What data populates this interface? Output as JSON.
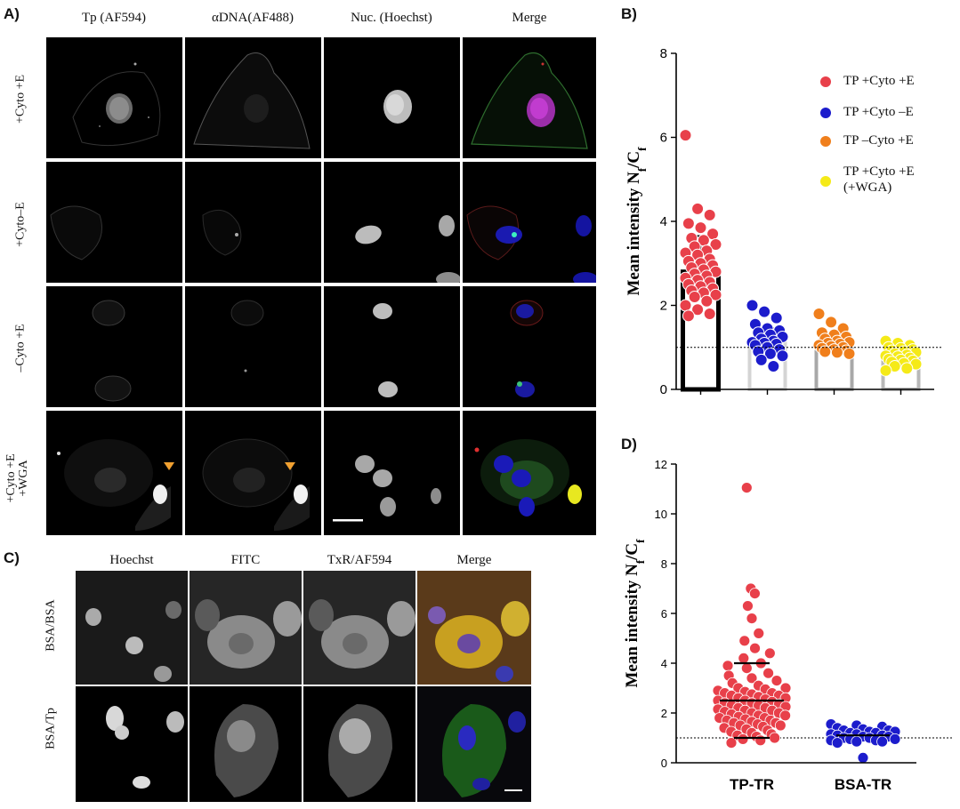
{
  "panel_a": {
    "label": "A)",
    "columns": [
      "Tp (AF594)",
      "αDNA(AF488)",
      "Nuc. (Hoechst)",
      "Merge"
    ],
    "rows": [
      "+Cyto +E",
      "+Cyto–E",
      "–Cyto +E",
      "+Cyto +E\n+WGA"
    ]
  },
  "panel_b": {
    "label": "B)",
    "legend": [
      "TP +Cyto +E",
      "TP +Cyto –E",
      "TP –Cyto +E",
      "TP +Cyto +E",
      "(+WGA)"
    ]
  },
  "panel_c": {
    "label": "C)",
    "columns": [
      "Hoechst",
      "FITC",
      "TxR/AF594",
      "Merge"
    ],
    "rows": [
      "BSA/BSA",
      "BSA/Tp"
    ]
  },
  "panel_d": {
    "label": "D)"
  },
  "chart_data": [
    {
      "type": "bar",
      "panel": "B",
      "ylabel": "Mean intensity Nf/Cf",
      "ylim": [
        0,
        8
      ],
      "yticks": [
        "0",
        "2",
        "4",
        "6",
        "8"
      ],
      "reference_line": 1,
      "colors": {
        "s1": "#e8404a",
        "s2": "#1c1ccc",
        "s3": "#f07f1c",
        "s4": "#f5ea18"
      },
      "series": [
        {
          "name": "TP +Cyto +E",
          "mean": 2.8,
          "sd": 0.85,
          "values": [
            6.05,
            4.3,
            4.15,
            3.95,
            3.85,
            3.7,
            3.6,
            3.55,
            3.45,
            3.4,
            3.3,
            3.25,
            3.2,
            3.1,
            3.05,
            3.0,
            2.95,
            2.9,
            2.85,
            2.8,
            2.75,
            2.7,
            2.65,
            2.6,
            2.55,
            2.5,
            2.45,
            2.4,
            2.35,
            2.3,
            2.25,
            2.2,
            2.1,
            2.0,
            1.9,
            1.8,
            1.75
          ]
        },
        {
          "name": "TP +Cyto –E",
          "mean": 1.15,
          "sd": 0.3,
          "values": [
            2.0,
            1.85,
            1.7,
            1.55,
            1.45,
            1.4,
            1.35,
            1.3,
            1.25,
            1.2,
            1.15,
            1.12,
            1.1,
            1.08,
            1.05,
            1.0,
            0.95,
            0.9,
            0.85,
            0.8,
            0.7,
            0.55
          ]
        },
        {
          "name": "TP –Cyto +E",
          "mean": 1.1,
          "sd": 0.22,
          "values": [
            1.8,
            1.6,
            1.45,
            1.35,
            1.3,
            1.25,
            1.2,
            1.15,
            1.12,
            1.1,
            1.08,
            1.05,
            1.02,
            1.0,
            0.98,
            0.95,
            0.92,
            0.9,
            0.88,
            0.85
          ]
        },
        {
          "name": "TP +Cyto +E (+WGA)",
          "mean": 0.8,
          "sd": 0.15,
          "values": [
            1.15,
            1.1,
            1.05,
            1.0,
            0.98,
            0.95,
            0.92,
            0.9,
            0.88,
            0.85,
            0.82,
            0.8,
            0.78,
            0.75,
            0.72,
            0.7,
            0.68,
            0.65,
            0.62,
            0.6,
            0.55,
            0.5,
            0.45
          ]
        }
      ]
    },
    {
      "type": "scatter",
      "panel": "D",
      "ylabel": "Mean intensity Nf/Cf",
      "ylim": [
        0,
        12
      ],
      "yticks": [
        "0",
        "2",
        "4",
        "6",
        "8",
        "10",
        "12"
      ],
      "categories": [
        "TP-TR",
        "BSA-TR"
      ],
      "reference_line": 1,
      "colors": {
        "s1": "#e8404a",
        "s2": "#1c1ccc"
      },
      "series": [
        {
          "name": "TP-TR",
          "mean": 2.5,
          "sd": 1.5,
          "values": [
            11.05,
            7.0,
            6.8,
            6.3,
            5.8,
            5.2,
            4.9,
            4.6,
            4.4,
            4.2,
            4.0,
            3.9,
            3.8,
            3.6,
            3.5,
            3.4,
            3.3,
            3.2,
            3.1,
            3.0,
            3.0,
            2.95,
            2.9,
            2.85,
            2.8,
            2.8,
            2.75,
            2.7,
            2.7,
            2.65,
            2.6,
            2.6,
            2.55,
            2.5,
            2.5,
            2.45,
            2.4,
            2.4,
            2.35,
            2.3,
            2.3,
            2.25,
            2.2,
            2.2,
            2.15,
            2.1,
            2.1,
            2.05,
            2.0,
            2.0,
            1.95,
            1.9,
            1.9,
            1.85,
            1.8,
            1.8,
            1.75,
            1.7,
            1.7,
            1.65,
            1.6,
            1.6,
            1.55,
            1.5,
            1.5,
            1.45,
            1.4,
            1.35,
            1.3,
            1.25,
            1.2,
            1.15,
            1.1,
            1.05,
            1.0,
            0.95,
            0.9,
            0.8
          ]
        },
        {
          "name": "BSA-TR",
          "mean": 1.1,
          "sd": 0.2,
          "values": [
            1.55,
            1.5,
            1.45,
            1.4,
            1.35,
            1.3,
            1.3,
            1.25,
            1.25,
            1.2,
            1.2,
            1.15,
            1.15,
            1.1,
            1.1,
            1.05,
            1.05,
            1.0,
            1.0,
            0.95,
            0.95,
            0.9,
            0.9,
            0.85,
            0.85,
            0.8,
            0.2
          ]
        }
      ]
    }
  ]
}
